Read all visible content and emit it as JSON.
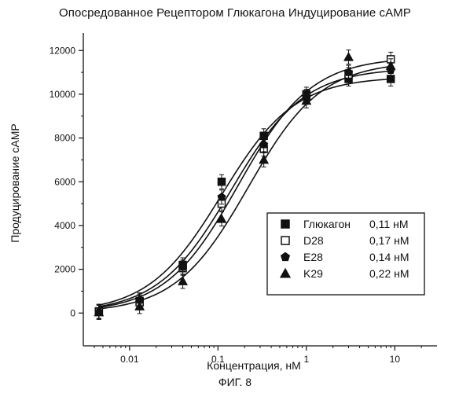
{
  "title": "Опосредованное Рецептором Глюкагона Индуцирование сАМР",
  "caption": "ФИГ. 8",
  "chart_data": {
    "type": "scatter",
    "title": "Опосредованное Рецептором Глюкагона Индуцирование сАМР",
    "xlabel": "Концентрация, нМ",
    "ylabel": "Продуцирование сАМР",
    "xscale": "log",
    "xlim": [
      0.003,
      30
    ],
    "ylim": [
      -1500,
      12800
    ],
    "xticks": [
      0.01,
      0.1,
      1,
      10
    ],
    "xtick_labels": [
      "0.01",
      "0.1",
      "1",
      "10"
    ],
    "yticks": [
      0,
      2000,
      4000,
      6000,
      8000,
      10000,
      12000
    ],
    "ytick_labels": [
      "0",
      "2000",
      "4000",
      "6000",
      "8000",
      "10000",
      "12000"
    ],
    "grid": false,
    "legend_position": "bottom-right",
    "series": [
      {
        "name": "Глюкагон",
        "ec50_label": "0,11 нМ",
        "marker": "filled-square",
        "ec50": 0.11,
        "top": 10800,
        "x": [
          0.0045,
          0.013,
          0.04,
          0.11,
          0.33,
          1.0,
          3.0,
          9.0
        ],
        "y": [
          80,
          550,
          2200,
          6000,
          8100,
          10000,
          10700,
          10700
        ]
      },
      {
        "name": "D28",
        "ec50_label": "0,17 нМ",
        "marker": "open-square",
        "ec50": 0.17,
        "top": 11700,
        "x": [
          0.0045,
          0.013,
          0.04,
          0.11,
          0.33,
          1.0,
          3.0,
          9.0
        ],
        "y": [
          60,
          480,
          2050,
          5000,
          7500,
          9900,
          10900,
          11600
        ]
      },
      {
        "name": "E28",
        "ec50_label": "0,14 нМ",
        "marker": "filled-pentagon",
        "ec50": 0.14,
        "top": 11200,
        "x": [
          0.0045,
          0.013,
          0.04,
          0.11,
          0.33,
          1.0,
          3.0,
          9.0
        ],
        "y": [
          50,
          600,
          2100,
          5300,
          7700,
          9900,
          11000,
          11100
        ]
      },
      {
        "name": "K29",
        "ec50_label": "0,22 нМ",
        "marker": "filled-triangle",
        "ec50": 0.22,
        "top": 11500,
        "x": [
          0.0045,
          0.013,
          0.04,
          0.11,
          0.33,
          1.0,
          3.0,
          9.0
        ],
        "y": [
          30,
          300,
          1450,
          4300,
          7000,
          9700,
          11700,
          11300
        ]
      }
    ]
  }
}
